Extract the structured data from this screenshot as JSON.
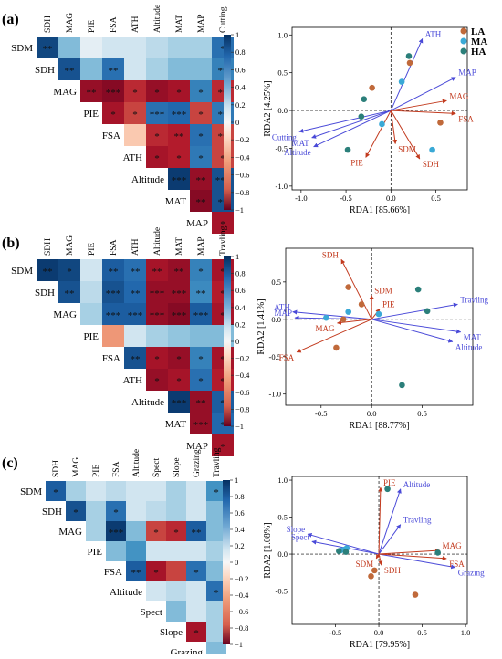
{
  "panel_labels": [
    "(a)",
    "(b)",
    "(c)"
  ],
  "legend": [
    {
      "label": "LA",
      "color": "#c0693a"
    },
    {
      "label": "MA",
      "color": "#3aa9d6"
    },
    {
      "label": "HA",
      "color": "#2b7f7a"
    }
  ],
  "colorbar_ticks": [
    "1",
    "0.8",
    "0.6",
    "0.4",
    "0.2",
    "0",
    "−0.2",
    "−0.4",
    "−0.6",
    "−0.8",
    "−1"
  ],
  "colors": {
    "env_arrow": "#4a4ad8",
    "resp_arrow": "#c23a1e",
    "neg": "#b2182b",
    "pos": "#2166ac"
  },
  "chart_data": [
    {
      "type": "heatmap",
      "panel": "(a)",
      "row_labels": [
        "SDM",
        "SDH",
        "MAG",
        "PIE",
        "FSA",
        "ATH",
        "Altitude",
        "MAT",
        "MAP"
      ],
      "col_labels": [
        "SDH",
        "MAG",
        "PIE",
        "FSA",
        "ATH",
        "Altitude",
        "MAT",
        "MAP",
        "Cutting"
      ],
      "values": [
        [
          0.9,
          0.3,
          0.05,
          0.1,
          0.1,
          0.15,
          0.2,
          0.2,
          0.7
        ],
        [
          null,
          0.85,
          0.3,
          0.7,
          0.1,
          0.2,
          0.3,
          0.3,
          0.6
        ],
        [
          null,
          null,
          -0.85,
          -0.9,
          -0.7,
          -0.85,
          -0.8,
          0.6,
          -0.7
        ],
        [
          null,
          null,
          null,
          -0.8,
          -0.6,
          0.7,
          0.75,
          -0.6,
          0.65
        ],
        [
          null,
          null,
          null,
          null,
          -0.15,
          -0.7,
          -0.75,
          0.7,
          -0.6
        ],
        [
          null,
          null,
          null,
          null,
          null,
          -0.8,
          -0.75,
          0.65,
          -0.6
        ],
        [
          null,
          null,
          null,
          null,
          null,
          null,
          0.95,
          -0.85,
          0.85
        ],
        [
          null,
          null,
          null,
          null,
          null,
          null,
          null,
          -0.9,
          0.85
        ],
        [
          null,
          null,
          null,
          null,
          null,
          null,
          null,
          null,
          -0.8
        ]
      ],
      "stars": [
        [
          "**",
          "",
          "",
          "",
          "",
          "",
          "",
          "",
          "*"
        ],
        [
          "",
          "**",
          "",
          "**",
          "",
          "",
          "",
          "",
          "**"
        ],
        [
          "",
          "",
          "**",
          "***",
          "*",
          "*",
          "*",
          "*",
          "**"
        ],
        [
          "",
          "",
          "",
          "*",
          "*",
          "***",
          "***",
          "*",
          "**"
        ],
        [
          "",
          "",
          "",
          "",
          "",
          "*",
          "**",
          "*",
          "**"
        ],
        [
          "",
          "",
          "",
          "",
          "",
          "*",
          "*",
          "*",
          "*"
        ],
        [
          "",
          "",
          "",
          "",
          "",
          "",
          "***",
          "**",
          "***"
        ],
        [
          "",
          "",
          "",
          "",
          "",
          "",
          "",
          "**",
          "**"
        ],
        [
          "",
          "",
          "",
          "",
          "",
          "",
          "",
          "",
          "*"
        ]
      ]
    },
    {
      "type": "scatter",
      "subtype": "rda_biplot",
      "panel": "(a)",
      "xlabel": "RDA1 [85.66%]",
      "ylabel": "RDA2 [4.25%]",
      "xlim": [
        -1.1,
        0.85
      ],
      "ylim": [
        -1.05,
        1.1
      ],
      "x_ticks": [
        "-1.0",
        "-0.5",
        "0.0",
        "0.5"
      ],
      "y_ticks": [
        "1.0",
        "0.5",
        "0.0",
        "-0.5",
        "-1.0"
      ],
      "env_arrows": [
        {
          "label": "ATH",
          "x": 0.35,
          "y": 0.95
        },
        {
          "label": "MAP",
          "x": 0.72,
          "y": 0.44
        },
        {
          "label": "Cutting",
          "x": -1.02,
          "y": -0.28
        },
        {
          "label": "MAT",
          "x": -0.88,
          "y": -0.36
        },
        {
          "label": "Altitude",
          "x": -0.86,
          "y": -0.48
        }
      ],
      "response_arrows": [
        {
          "label": "MAG",
          "x": 0.62,
          "y": 0.13
        },
        {
          "label": "FSA",
          "x": 0.72,
          "y": -0.04
        },
        {
          "label": "SDM",
          "x": 0.05,
          "y": -0.44
        },
        {
          "label": "PIE",
          "x": -0.28,
          "y": -0.62
        },
        {
          "label": "SDH",
          "x": 0.32,
          "y": -0.64
        }
      ],
      "points": [
        {
          "group": "LA",
          "x": 0.21,
          "y": 0.63
        },
        {
          "group": "LA",
          "x": -0.21,
          "y": 0.3
        },
        {
          "group": "LA",
          "x": 0.55,
          "y": -0.16
        },
        {
          "group": "MA",
          "x": 0.12,
          "y": 0.38
        },
        {
          "group": "MA",
          "x": -0.1,
          "y": -0.18
        },
        {
          "group": "MA",
          "x": 0.46,
          "y": -0.52
        },
        {
          "group": "HA",
          "x": 0.2,
          "y": 0.72
        },
        {
          "group": "HA",
          "x": -0.3,
          "y": 0.15
        },
        {
          "group": "HA",
          "x": -0.33,
          "y": -0.08
        },
        {
          "group": "HA",
          "x": -0.48,
          "y": -0.52
        }
      ]
    },
    {
      "type": "heatmap",
      "panel": "(b)",
      "row_labels": [
        "SDM",
        "SDH",
        "MAG",
        "PIE",
        "FSA",
        "ATH",
        "Altitude",
        "MAT",
        "MAP"
      ],
      "col_labels": [
        "SDH",
        "MAG",
        "PIE",
        "FSA",
        "ATH",
        "Altitude",
        "MAT",
        "MAP",
        "Travling"
      ],
      "values": [
        [
          0.95,
          0.9,
          0.1,
          0.8,
          0.7,
          -0.8,
          -0.85,
          0.6,
          -0.8
        ],
        [
          null,
          0.85,
          0.15,
          0.85,
          0.75,
          -0.85,
          -0.85,
          0.55,
          -0.75
        ],
        [
          null,
          null,
          0.2,
          0.8,
          0.8,
          -0.85,
          -0.9,
          0.8,
          -0.8
        ],
        [
          null,
          null,
          null,
          -0.3,
          0.1,
          0.2,
          0.25,
          0.3,
          0.3
        ],
        [
          null,
          null,
          null,
          null,
          0.85,
          -0.8,
          -0.85,
          0.6,
          -0.8
        ],
        [
          null,
          null,
          null,
          null,
          null,
          -0.85,
          -0.8,
          0.7,
          -0.75
        ],
        [
          null,
          null,
          null,
          null,
          null,
          null,
          0.95,
          -0.85,
          0.8
        ],
        [
          null,
          null,
          null,
          null,
          null,
          null,
          null,
          -0.85,
          0.75
        ],
        [
          null,
          null,
          null,
          null,
          null,
          null,
          null,
          null,
          -0.8
        ]
      ],
      "stars": [
        [
          "**",
          "*",
          "",
          "**",
          "**",
          "**",
          "**",
          "*",
          "*"
        ],
        [
          "",
          "**",
          "",
          "***",
          "**",
          "***",
          "***",
          "**",
          "*"
        ],
        [
          "",
          "",
          "",
          "***",
          "***",
          "***",
          "***",
          "***",
          "*"
        ],
        [
          "",
          "",
          "",
          "",
          "",
          "",
          "",
          "",
          ""
        ],
        [
          "",
          "",
          "",
          "",
          "**",
          "*",
          "*",
          "*",
          "*"
        ],
        [
          "",
          "",
          "",
          "",
          "",
          "*",
          "*",
          "*",
          "*"
        ],
        [
          "",
          "",
          "",
          "",
          "",
          "",
          "***",
          "**",
          "*"
        ],
        [
          "",
          "",
          "",
          "",
          "",
          "",
          "",
          "***",
          "*"
        ],
        [
          "",
          "",
          "",
          "",
          "",
          "",
          "",
          "",
          "*"
        ]
      ]
    },
    {
      "type": "scatter",
      "subtype": "rda_biplot",
      "panel": "(b)",
      "xlabel": "RDA1 [88.77%]",
      "ylabel": "RDA2 [1.41%]",
      "xlim": [
        -0.85,
        1.0
      ],
      "ylim": [
        -1.15,
        0.95
      ],
      "x_ticks": [
        "-0.5",
        "0.0",
        "0.5"
      ],
      "y_ticks": [
        "0.5",
        "0.0",
        "-0.5",
        "-1.0"
      ],
      "env_arrows": [
        {
          "label": "Travling",
          "x": 0.85,
          "y": 0.2
        },
        {
          "label": "ATH",
          "x": -0.78,
          "y": 0.1
        },
        {
          "label": "MAP",
          "x": -0.76,
          "y": 0.02
        },
        {
          "label": "MAT",
          "x": 0.88,
          "y": -0.17
        },
        {
          "label": "Altitude",
          "x": 0.8,
          "y": -0.3
        }
      ],
      "response_arrows": [
        {
          "label": "SDH",
          "x": -0.3,
          "y": 0.8
        },
        {
          "label": "SDM",
          "x": 0.0,
          "y": 0.32
        },
        {
          "label": "PIE",
          "x": 0.08,
          "y": 0.14
        },
        {
          "label": "MAG",
          "x": -0.34,
          "y": -0.05
        },
        {
          "label": "FSA",
          "x": -0.74,
          "y": -0.44
        }
      ],
      "points": [
        {
          "group": "LA",
          "x": -0.23,
          "y": 0.43
        },
        {
          "group": "LA",
          "x": -0.1,
          "y": 0.2
        },
        {
          "group": "LA",
          "x": -0.28,
          "y": 0.0
        },
        {
          "group": "LA",
          "x": -0.35,
          "y": -0.38
        },
        {
          "group": "MA",
          "x": -0.23,
          "y": 0.1
        },
        {
          "group": "MA",
          "x": 0.07,
          "y": 0.07
        },
        {
          "group": "MA",
          "x": -0.45,
          "y": 0.02
        },
        {
          "group": "HA",
          "x": 0.46,
          "y": 0.4
        },
        {
          "group": "HA",
          "x": 0.55,
          "y": 0.11
        },
        {
          "group": "HA",
          "x": 0.3,
          "y": -0.88
        }
      ]
    },
    {
      "type": "heatmap",
      "panel": "(c)",
      "row_labels": [
        "SDM",
        "SDH",
        "MAG",
        "PIE",
        "FSA",
        "Altitude",
        "Spect",
        "Slope",
        "Grazing"
      ],
      "col_labels": [
        "SDH",
        "MAG",
        "PIE",
        "FSA",
        "Altitude",
        "Spect",
        "Slope",
        "Grazing",
        "Travling"
      ],
      "values": [
        [
          0.8,
          0.2,
          0.1,
          0.15,
          0.1,
          0.1,
          0.2,
          0.1,
          0.5
        ],
        [
          null,
          0.85,
          0.2,
          0.7,
          0.1,
          0.15,
          0.2,
          0.1,
          0.3
        ],
        [
          null,
          null,
          0.2,
          0.95,
          0.3,
          -0.6,
          -0.7,
          0.8,
          0.3
        ],
        [
          null,
          null,
          null,
          0.3,
          0.5,
          0.1,
          0.1,
          0.1,
          0.2
        ],
        [
          null,
          null,
          null,
          null,
          0.8,
          -0.8,
          -0.6,
          0.7,
          0.3
        ],
        [
          null,
          null,
          null,
          null,
          null,
          0.1,
          0.15,
          0.1,
          0.7
        ],
        [
          null,
          null,
          null,
          null,
          null,
          null,
          0.3,
          0.1,
          0.2
        ],
        [
          null,
          null,
          null,
          null,
          null,
          null,
          null,
          -0.8,
          0.2
        ],
        [
          null,
          null,
          null,
          null,
          null,
          null,
          null,
          null,
          0.3
        ]
      ],
      "stars": [
        [
          "*",
          "",
          "",
          "",
          "",
          "",
          "",
          "",
          "*"
        ],
        [
          "",
          "*",
          "",
          "*",
          "",
          "",
          "",
          "",
          ""
        ],
        [
          "",
          "",
          "",
          "***",
          "",
          "*",
          "*",
          "**",
          ""
        ],
        [
          "",
          "",
          "",
          "",
          "",
          "",
          "",
          "",
          ""
        ],
        [
          "",
          "",
          "",
          "",
          "**",
          "*",
          "",
          "*",
          ""
        ],
        [
          "",
          "",
          "",
          "",
          "",
          "",
          "",
          "",
          "*"
        ],
        [
          "",
          "",
          "",
          "",
          "",
          "",
          "",
          "",
          ""
        ],
        [
          "",
          "",
          "",
          "",
          "",
          "",
          "",
          "*",
          ""
        ],
        [
          "",
          "",
          "",
          "",
          "",
          "",
          "",
          "",
          ""
        ]
      ]
    },
    {
      "type": "scatter",
      "subtype": "rda_biplot",
      "panel": "(c)",
      "xlabel": "RDA1 [79.95%]",
      "ylabel": "RDA2 [1.08%]",
      "xlim": [
        -1.0,
        1.02
      ],
      "ylim": [
        -0.95,
        1.05
      ],
      "x_ticks": [
        "-0.5",
        "0.0",
        "0.5",
        "1.0"
      ],
      "y_ticks": [
        "1.0",
        "0.5",
        "0.0",
        "-0.5"
      ],
      "env_arrows": [
        {
          "label": "Altitude",
          "x": 0.25,
          "y": 0.88
        },
        {
          "label": "Travling",
          "x": 0.25,
          "y": 0.4
        },
        {
          "label": "Slope",
          "x": -0.82,
          "y": 0.27
        },
        {
          "label": "Spect",
          "x": -0.77,
          "y": 0.17
        },
        {
          "label": "Grazing",
          "x": 0.88,
          "y": -0.18
        }
      ],
      "response_arrows": [
        {
          "label": "PIE",
          "x": 0.02,
          "y": 0.9
        },
        {
          "label": "MAG",
          "x": 0.7,
          "y": 0.05
        },
        {
          "label": "FSA",
          "x": 0.78,
          "y": -0.06
        },
        {
          "label": "SDM",
          "x": -0.03,
          "y": -0.06
        },
        {
          "label": "SDH",
          "x": 0.03,
          "y": -0.15
        }
      ],
      "points": [
        {
          "group": "LA",
          "x": -0.05,
          "y": -0.22
        },
        {
          "group": "LA",
          "x": -0.09,
          "y": -0.3
        },
        {
          "group": "LA",
          "x": 0.42,
          "y": -0.55
        },
        {
          "group": "MA",
          "x": -0.44,
          "y": 0.05
        },
        {
          "group": "MA",
          "x": -0.4,
          "y": 0.06
        },
        {
          "group": "MA",
          "x": -0.37,
          "y": 0.08
        },
        {
          "group": "HA",
          "x": 0.1,
          "y": 0.88
        },
        {
          "group": "HA",
          "x": 0.68,
          "y": 0.02
        },
        {
          "group": "HA",
          "x": -0.38,
          "y": 0.03
        },
        {
          "group": "HA",
          "x": -0.46,
          "y": 0.04
        }
      ]
    }
  ]
}
